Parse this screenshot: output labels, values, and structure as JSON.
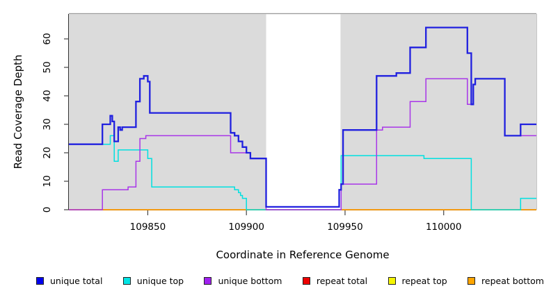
{
  "chart_data": {
    "type": "line",
    "line_style": "step-after",
    "title": "",
    "xlabel": "Coordinate in Reference Genome",
    "ylabel": "Read Coverage Depth",
    "xlim": [
      109810,
      110047
    ],
    "ylim": [
      0,
      69
    ],
    "x_ticks": [
      109850,
      109900,
      109950,
      110000
    ],
    "y_ticks": [
      0,
      10,
      20,
      30,
      40,
      50,
      60
    ],
    "grid": false,
    "legend_position": "bottom",
    "plot_background": "#DBDBDB",
    "masked_region": {
      "start": 109910,
      "end": 109947.7,
      "color": "#FFFFFF"
    },
    "series": [
      {
        "name": "repeat total",
        "color": "#E60000",
        "width": 1.0,
        "points": [
          [
            109810,
            0
          ]
        ]
      },
      {
        "name": "repeat top",
        "color": "#F5F500",
        "width": 1.0,
        "points": [
          [
            109810,
            0
          ]
        ]
      },
      {
        "name": "repeat bottom",
        "color": "#FF9A00",
        "width": 1.8,
        "points": [
          [
            109810,
            0
          ]
        ]
      },
      {
        "name": "unique top",
        "color": "#00E0E0",
        "width": 1.5,
        "points": [
          [
            109810,
            23
          ],
          [
            109831,
            26
          ],
          [
            109833,
            17
          ],
          [
            109835,
            21
          ],
          [
            109850,
            18
          ],
          [
            109852,
            8
          ],
          [
            109894,
            7
          ],
          [
            109896,
            6
          ],
          [
            109897,
            5
          ],
          [
            109898,
            4
          ],
          [
            109900,
            0
          ],
          [
            109948,
            19
          ],
          [
            109990,
            18
          ],
          [
            110014,
            0
          ],
          [
            110039,
            4
          ]
        ]
      },
      {
        "name": "unique bottom",
        "color": "#A835E8",
        "width": 1.5,
        "points": [
          [
            109810,
            0
          ],
          [
            109827,
            7
          ],
          [
            109840,
            8
          ],
          [
            109844,
            17
          ],
          [
            109846,
            25
          ],
          [
            109849,
            26
          ],
          [
            109892,
            20
          ],
          [
            109902,
            18
          ],
          [
            109910,
            0
          ],
          [
            109948,
            9
          ],
          [
            109966,
            28
          ],
          [
            109969,
            29
          ],
          [
            109983,
            38
          ],
          [
            109991,
            46
          ],
          [
            110012,
            37
          ],
          [
            110015,
            44
          ],
          [
            110016,
            46
          ],
          [
            110031,
            26
          ]
        ]
      },
      {
        "name": "unique total",
        "color": "#2020DF",
        "width": 2.3,
        "points": [
          [
            109810,
            23
          ],
          [
            109827,
            30
          ],
          [
            109831,
            33
          ],
          [
            109832,
            31
          ],
          [
            109833,
            24
          ],
          [
            109835,
            29
          ],
          [
            109836,
            28
          ],
          [
            109837,
            29
          ],
          [
            109844,
            38
          ],
          [
            109846,
            46
          ],
          [
            109848,
            47
          ],
          [
            109850,
            45
          ],
          [
            109851,
            34
          ],
          [
            109892,
            27
          ],
          [
            109894,
            26
          ],
          [
            109896,
            24
          ],
          [
            109898,
            22
          ],
          [
            109900,
            20
          ],
          [
            109902,
            18
          ],
          [
            109910,
            1
          ],
          [
            109947,
            7
          ],
          [
            109948,
            9
          ],
          [
            109949,
            28
          ],
          [
            109966,
            47
          ],
          [
            109976,
            48
          ],
          [
            109983,
            57
          ],
          [
            109991,
            64
          ],
          [
            110012,
            55
          ],
          [
            110014,
            37
          ],
          [
            110015,
            44
          ],
          [
            110016,
            46
          ],
          [
            110031,
            26
          ],
          [
            110039,
            30
          ]
        ]
      }
    ]
  },
  "legend": {
    "items": [
      {
        "label": "unique total",
        "color": "#0000EE"
      },
      {
        "label": "unique top",
        "color": "#00E5E5"
      },
      {
        "label": "unique bottom",
        "color": "#A020F0"
      },
      {
        "label": "repeat total",
        "color": "#EE0000"
      },
      {
        "label": "repeat top",
        "color": "#F5F500"
      },
      {
        "label": "repeat bottom",
        "color": "#FFA500"
      }
    ]
  }
}
